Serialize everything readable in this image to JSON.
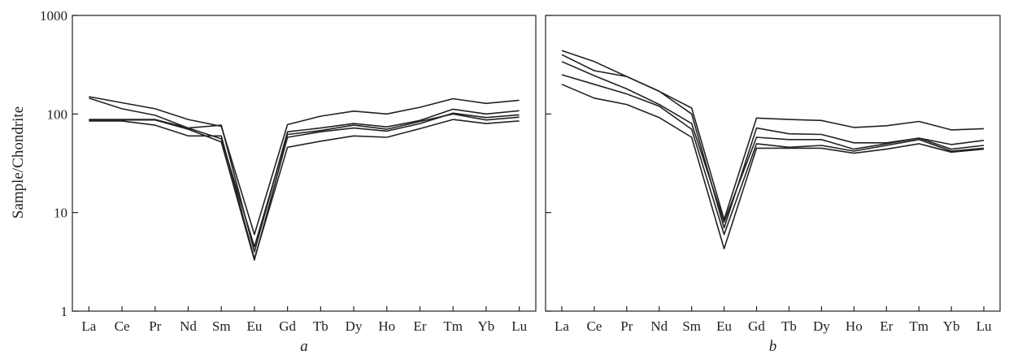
{
  "chart_data": {
    "type": "line",
    "y_scale": "log",
    "ylabel": "Sample/Chondrite",
    "ylim": [
      1,
      1000
    ],
    "y_ticks": [
      "1",
      "10",
      "100",
      "1000"
    ],
    "categories": [
      "La",
      "Ce",
      "Pr",
      "Nd",
      "Sm",
      "Eu",
      "Gd",
      "Tb",
      "Dy",
      "Ho",
      "Er",
      "Tm",
      "Yb",
      "Lu"
    ],
    "grid": false,
    "legend": "none",
    "panels": [
      {
        "label": "a",
        "series": [
          {
            "values": [
              150,
              130,
              113,
              88,
              75,
              6,
              78,
              95,
              107,
              100,
              117,
              143,
              128,
              138
            ]
          },
          {
            "values": [
              145,
              113,
              97,
              72,
              77,
              4,
              66,
              72,
              80,
              74,
              86,
              112,
              100,
              108
            ]
          },
          {
            "values": [
              88,
              88,
              88,
              72,
              56,
              4.5,
              62,
              68,
              77,
              70,
              84,
              100,
              87,
              93
            ]
          },
          {
            "values": [
              85,
              85,
              77,
              60,
              60,
              3.4,
              46,
              53,
              60,
              58,
              71,
              88,
              80,
              85
            ]
          },
          {
            "values": [
              87,
              87,
              87,
              70,
              52,
              3.3,
              58,
              66,
              72,
              67,
              80,
              102,
              92,
              98
            ]
          }
        ]
      },
      {
        "label": "b",
        "series": [
          {
            "values": [
              440,
              340,
              240,
              170,
              115,
              8.5,
              91,
              88,
              86,
              73,
              76,
              84,
              69,
              71
            ]
          },
          {
            "values": [
              400,
              275,
              240,
              170,
              100,
              7,
              72,
              63,
              62,
              51,
              51,
              57,
              49,
              54
            ]
          },
          {
            "values": [
              340,
              245,
              180,
              125,
              80,
              8,
              58,
              55,
              55,
              44,
              50,
              57,
              44,
              48
            ]
          },
          {
            "values": [
              250,
              200,
              160,
              120,
              70,
              6,
              50,
              46,
              48,
              42,
              48,
              55,
              42,
              45
            ]
          },
          {
            "values": [
              200,
              145,
              125,
              92,
              58,
              4.3,
              45,
              45,
              45,
              40,
              44,
              50,
              41,
              44
            ]
          }
        ]
      }
    ]
  }
}
